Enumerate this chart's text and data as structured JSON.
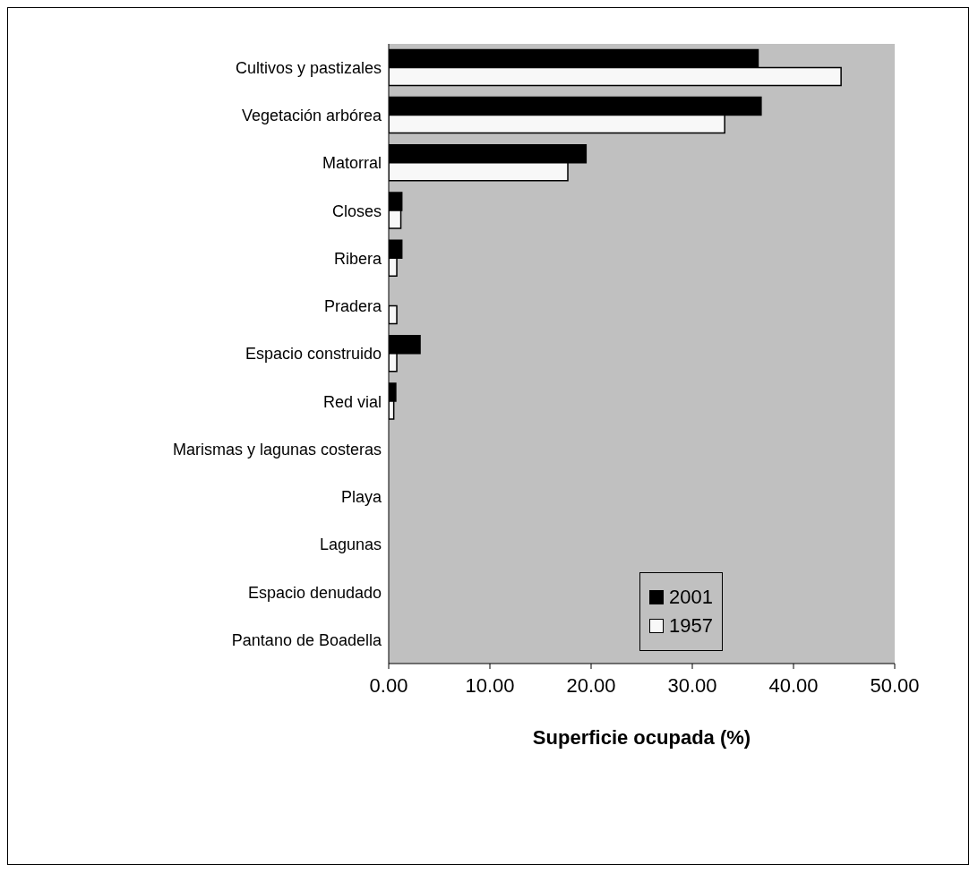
{
  "chart_data": {
    "type": "bar",
    "orientation": "horizontal",
    "xlabel": "Superficie ocupada (%)",
    "categories": [
      "Cultivos y pastizales",
      "Vegetación arbórea",
      "Matorral",
      "Closes",
      "Ribera",
      "Pradera",
      "Espacio construido",
      "Red vial",
      "Marismas y lagunas costeras",
      "Playa",
      "Lagunas",
      "Espacio denudado",
      "Pantano de Boadella"
    ],
    "series": [
      {
        "name": "2001",
        "color": "#000000",
        "values": [
          36.5,
          36.8,
          19.5,
          1.3,
          1.3,
          0,
          3.1,
          0.7,
          0,
          0,
          0,
          0,
          0
        ]
      },
      {
        "name": "1957",
        "color": "#f8f8f8",
        "values": [
          44.7,
          33.2,
          17.7,
          1.2,
          0.8,
          0.8,
          0.8,
          0.5,
          0,
          0,
          0,
          0,
          0
        ]
      }
    ],
    "xlim": [
      0,
      50
    ],
    "xticks": [
      {
        "value": 0,
        "label": "0.00"
      },
      {
        "value": 10,
        "label": "10.00"
      },
      {
        "value": 20,
        "label": "20.00"
      },
      {
        "value": 30,
        "label": "30.00"
      },
      {
        "value": 40,
        "label": "40.00"
      },
      {
        "value": 50,
        "label": "50.00"
      }
    ],
    "grid": false,
    "legend": "right"
  }
}
